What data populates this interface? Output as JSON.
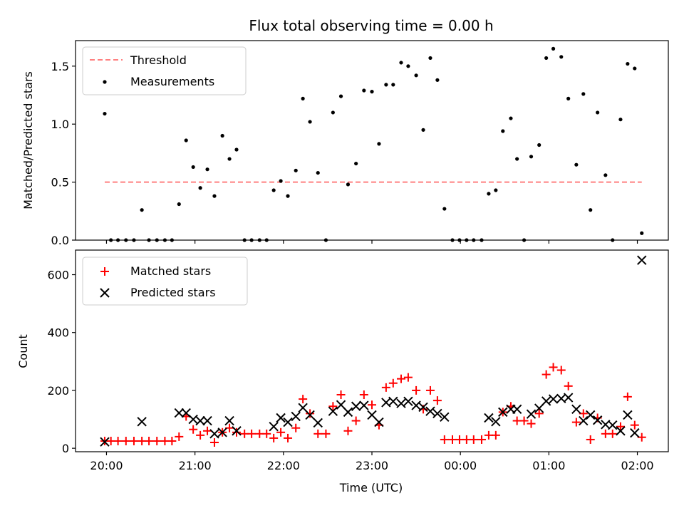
{
  "chart_data": [
    {
      "type": "scatter",
      "title": "Flux total observing time = 0.00 h",
      "xlabel": "",
      "ylabel": "Matched/Predicted stars",
      "ylim": [
        0,
        1.72
      ],
      "yticks": [
        "0.0",
        "0.5",
        "1.0",
        "1.5"
      ],
      "x_unit": "hours since 20:00 UTC",
      "xlim": [
        -0.35,
        6.35
      ],
      "legend_position": "top-left",
      "series": [
        {
          "name": "Threshold",
          "style": "dashed-line",
          "color": "#ff8080",
          "x": [
            -0.02,
            6.05
          ],
          "values": [
            0.5,
            0.5
          ]
        },
        {
          "name": "Measurements",
          "style": "dot",
          "color": "#000000",
          "x": [
            -0.02,
            0.05,
            0.13,
            0.22,
            0.31,
            0.4,
            0.48,
            0.57,
            0.66,
            0.74,
            0.82,
            0.9,
            0.98,
            1.06,
            1.14,
            1.22,
            1.31,
            1.39,
            1.47,
            1.56,
            1.64,
            1.73,
            1.81,
            1.89,
            1.97,
            2.05,
            2.14,
            2.22,
            2.3,
            2.39,
            2.48,
            2.56,
            2.65,
            2.73,
            2.82,
            2.91,
            3.0,
            3.08,
            3.16,
            3.24,
            3.33,
            3.41,
            3.5,
            3.58,
            3.66,
            3.74,
            3.82,
            3.91,
            3.99,
            4.07,
            4.15,
            4.24,
            4.32,
            4.4,
            4.48,
            4.57,
            4.64,
            4.72,
            4.8,
            4.89,
            4.97,
            5.05,
            5.14,
            5.22,
            5.31,
            5.39,
            5.47,
            5.55,
            5.64,
            5.72,
            5.81,
            5.89,
            5.97,
            6.05
          ],
          "values": [
            1.09,
            0.0,
            0.0,
            0.0,
            0.0,
            0.26,
            0.0,
            0.0,
            0.0,
            0.0,
            0.31,
            0.86,
            0.63,
            0.45,
            0.61,
            0.38,
            0.9,
            0.7,
            0.78,
            0.0,
            0.0,
            0.0,
            0.0,
            0.43,
            0.51,
            0.38,
            0.6,
            1.22,
            1.02,
            0.58,
            0.0,
            1.1,
            1.24,
            0.48,
            0.66,
            1.29,
            1.28,
            0.83,
            1.34,
            1.34,
            1.53,
            1.5,
            1.42,
            0.95,
            1.57,
            1.38,
            0.27,
            0.0,
            0.0,
            0.0,
            0.0,
            0.0,
            0.4,
            0.43,
            0.94,
            1.05,
            0.7,
            0.0,
            0.72,
            0.82,
            1.57,
            1.65,
            1.58,
            1.22,
            0.65,
            1.26,
            0.26,
            1.1,
            0.56,
            0.0,
            1.04,
            1.52,
            1.48,
            0.06
          ]
        }
      ]
    },
    {
      "type": "scatter",
      "title": "",
      "xlabel": "Time (UTC)",
      "ylabel": "Count",
      "ylim": [
        -12,
        685
      ],
      "yticks": [
        "0",
        "200",
        "400",
        "600"
      ],
      "x_unit": "hours since 20:00 UTC",
      "xlim": [
        -0.35,
        6.35
      ],
      "xticks": [
        "20:00",
        "21:00",
        "22:00",
        "23:00",
        "00:00",
        "01:00",
        "02:00"
      ],
      "legend_position": "top-left",
      "series": [
        {
          "name": "Matched stars",
          "style": "plus",
          "color": "#ff0000",
          "x": [
            -0.02,
            0.05,
            0.13,
            0.22,
            0.31,
            0.4,
            0.48,
            0.57,
            0.66,
            0.74,
            0.82,
            0.9,
            0.98,
            1.06,
            1.14,
            1.22,
            1.31,
            1.39,
            1.47,
            1.56,
            1.64,
            1.73,
            1.81,
            1.89,
            1.97,
            2.05,
            2.14,
            2.22,
            2.3,
            2.39,
            2.48,
            2.56,
            2.65,
            2.73,
            2.82,
            2.91,
            3.0,
            3.08,
            3.16,
            3.24,
            3.33,
            3.41,
            3.5,
            3.58,
            3.66,
            3.74,
            3.82,
            3.91,
            3.99,
            4.07,
            4.15,
            4.24,
            4.32,
            4.4,
            4.48,
            4.57,
            4.64,
            4.72,
            4.8,
            4.89,
            4.97,
            5.05,
            5.14,
            5.22,
            5.31,
            5.39,
            5.47,
            5.55,
            5.64,
            5.72,
            5.81,
            5.89,
            5.97,
            6.05
          ],
          "values": [
            25,
            25,
            25,
            25,
            25,
            25,
            25,
            25,
            25,
            25,
            40,
            110,
            65,
            45,
            60,
            20,
            55,
            70,
            55,
            50,
            50,
            50,
            50,
            35,
            55,
            35,
            70,
            170,
            120,
            50,
            50,
            145,
            185,
            60,
            95,
            185,
            150,
            80,
            210,
            225,
            240,
            245,
            200,
            135,
            200,
            165,
            30,
            30,
            30,
            30,
            30,
            30,
            45,
            45,
            125,
            145,
            95,
            95,
            85,
            120,
            255,
            280,
            270,
            215,
            90,
            120,
            30,
            105,
            50,
            50,
            75,
            178,
            80,
            38
          ]
        },
        {
          "name": "Predicted stars",
          "style": "x",
          "color": "#000000",
          "x": [
            -0.02,
            0.4,
            0.82,
            0.9,
            0.98,
            1.06,
            1.14,
            1.22,
            1.31,
            1.39,
            1.47,
            1.89,
            1.97,
            2.05,
            2.14,
            2.22,
            2.3,
            2.39,
            2.56,
            2.65,
            2.73,
            2.82,
            2.91,
            3.0,
            3.08,
            3.16,
            3.24,
            3.33,
            3.41,
            3.5,
            3.58,
            3.66,
            3.74,
            3.82,
            4.32,
            4.4,
            4.48,
            4.57,
            4.64,
            4.8,
            4.89,
            4.97,
            5.05,
            5.14,
            5.22,
            5.31,
            5.39,
            5.47,
            5.55,
            5.64,
            5.72,
            5.81,
            5.89,
            5.97,
            6.05
          ],
          "values": [
            22,
            92,
            122,
            122,
            100,
            95,
            95,
            50,
            55,
            95,
            60,
            75,
            105,
            90,
            110,
            140,
            115,
            88,
            128,
            150,
            125,
            145,
            148,
            115,
            90,
            158,
            162,
            155,
            162,
            148,
            142,
            128,
            120,
            108,
            105,
            92,
            125,
            135,
            135,
            118,
            138,
            163,
            170,
            172,
            175,
            135,
            95,
            115,
            97,
            82,
            80,
            60,
            115,
            53,
            650
          ]
        }
      ]
    }
  ]
}
